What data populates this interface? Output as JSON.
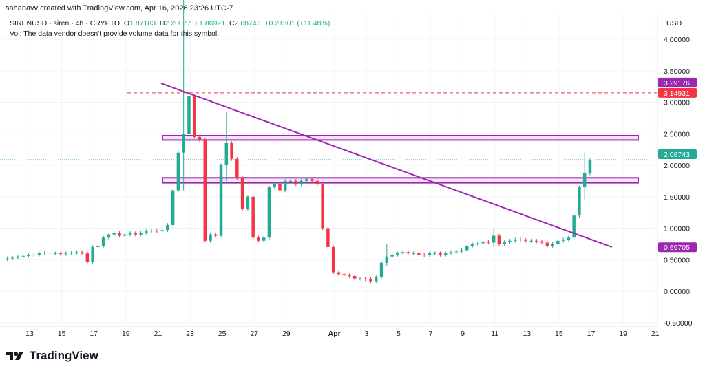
{
  "credit": "sahanavv created with TradingView.com, Apr 16, 2026 23:26 UTC-7",
  "legend": {
    "symbol": "SIRENUSD · siren · 4h · CRYPTO",
    "o_label": "O",
    "o": "1.87183",
    "h_label": "H",
    "h": "2.20077",
    "l_label": "L",
    "l": "1.86921",
    "c_label": "C",
    "c": "2.08743",
    "change": "+0.21501 (+11.48%)",
    "vol": "Vol: The data vendor doesn't provide volume data for this symbol."
  },
  "logo": "TradingView",
  "colors": {
    "up": "#22ab94",
    "down": "#f23645",
    "trend": "#9c27b0",
    "resistance": "#f23645"
  },
  "chart_data": {
    "type": "candlestick",
    "currency": "USD",
    "ylim": [
      -0.55,
      4.2
    ],
    "yticks": [
      "4.00000",
      "3.50000",
      "3.00000",
      "2.50000",
      "2.00000",
      "1.50000",
      "1.00000",
      "0.50000",
      "0.00000",
      "-0.50000"
    ],
    "ytick_values": [
      4,
      3.5,
      3,
      2.5,
      2,
      1.5,
      1,
      0.5,
      0,
      -0.5
    ],
    "xticks": [
      {
        "label": "13",
        "day": 13
      },
      {
        "label": "15",
        "day": 15
      },
      {
        "label": "17",
        "day": 17
      },
      {
        "label": "19",
        "day": 19
      },
      {
        "label": "21",
        "day": 21
      },
      {
        "label": "23",
        "day": 23
      },
      {
        "label": "25",
        "day": 25
      },
      {
        "label": "27",
        "day": 27
      },
      {
        "label": "29",
        "day": 29
      },
      {
        "label": "Apr",
        "day": 32
      },
      {
        "label": "3",
        "day": 34
      },
      {
        "label": "5",
        "day": 36
      },
      {
        "label": "7",
        "day": 38
      },
      {
        "label": "9",
        "day": 40
      },
      {
        "label": "11",
        "day": 42
      },
      {
        "label": "13",
        "day": 44
      },
      {
        "label": "15",
        "day": 46
      },
      {
        "label": "17",
        "day": 48
      },
      {
        "label": "19",
        "day": 50
      },
      {
        "label": "21",
        "day": 52
      }
    ],
    "start_day": 11.6,
    "candles_per_day": 3,
    "first_open": 0.51,
    "closes": [
      0.52,
      0.53,
      0.55,
      0.56,
      0.57,
      0.58,
      0.6,
      0.61,
      0.6,
      0.6,
      0.59,
      0.6,
      0.61,
      0.62,
      0.6,
      0.47,
      0.7,
      0.72,
      0.85,
      0.9,
      0.92,
      0.88,
      0.9,
      0.92,
      0.9,
      0.93,
      0.95,
      0.96,
      0.95,
      0.97,
      1.05,
      1.6,
      2.2,
      2.5,
      3.1,
      2.45,
      2.4,
      0.8,
      0.9,
      0.88,
      2.0,
      2.35,
      2.1,
      1.8,
      1.3,
      1.5,
      0.85,
      0.8,
      0.85,
      1.65,
      1.7,
      1.6,
      1.75,
      1.75,
      1.7,
      1.75,
      1.78,
      1.75,
      1.7,
      1.0,
      0.7,
      0.3,
      0.27,
      0.25,
      0.24,
      0.2,
      0.2,
      0.19,
      0.16,
      0.22,
      0.45,
      0.55,
      0.58,
      0.6,
      0.62,
      0.6,
      0.6,
      0.58,
      0.57,
      0.6,
      0.6,
      0.58,
      0.6,
      0.62,
      0.63,
      0.65,
      0.72,
      0.75,
      0.76,
      0.78,
      0.77,
      0.88,
      0.75,
      0.78,
      0.8,
      0.82,
      0.81,
      0.8,
      0.8,
      0.79,
      0.77,
      0.72,
      0.75,
      0.8,
      0.82,
      0.85,
      1.2,
      1.65,
      1.87,
      2.087
    ],
    "wicks": {
      "33": [
        5.2,
        1.6
      ],
      "34": [
        3.2,
        2.3
      ],
      "41": [
        2.85,
        1.75
      ],
      "51": [
        1.95,
        1.3
      ],
      "71": [
        0.75,
        0.4
      ],
      "91": [
        1.0,
        0.7
      ],
      "108": [
        2.2,
        1.45
      ]
    },
    "lines": {
      "resistance_dashed": 3.14931,
      "last_price": 2.08743
    },
    "zones": [
      {
        "from": 2.4,
        "to": 2.47
      },
      {
        "from": 1.72,
        "to": 1.8
      }
    ],
    "trendline": {
      "from": {
        "day": 21.2,
        "price": 3.3
      },
      "to": {
        "day": 49.3,
        "price": 0.7
      }
    },
    "price_tags": [
      {
        "label": "3.29176",
        "value": 3.29176,
        "color": "#9c27b0"
      },
      {
        "label": "3.14931",
        "value": 3.14931,
        "color": "#f23645"
      },
      {
        "label": "2.08743",
        "value": 2.08743,
        "color": "#22ab94"
      },
      {
        "label": "0.69705",
        "value": 0.69705,
        "color": "#9c27b0"
      }
    ]
  }
}
